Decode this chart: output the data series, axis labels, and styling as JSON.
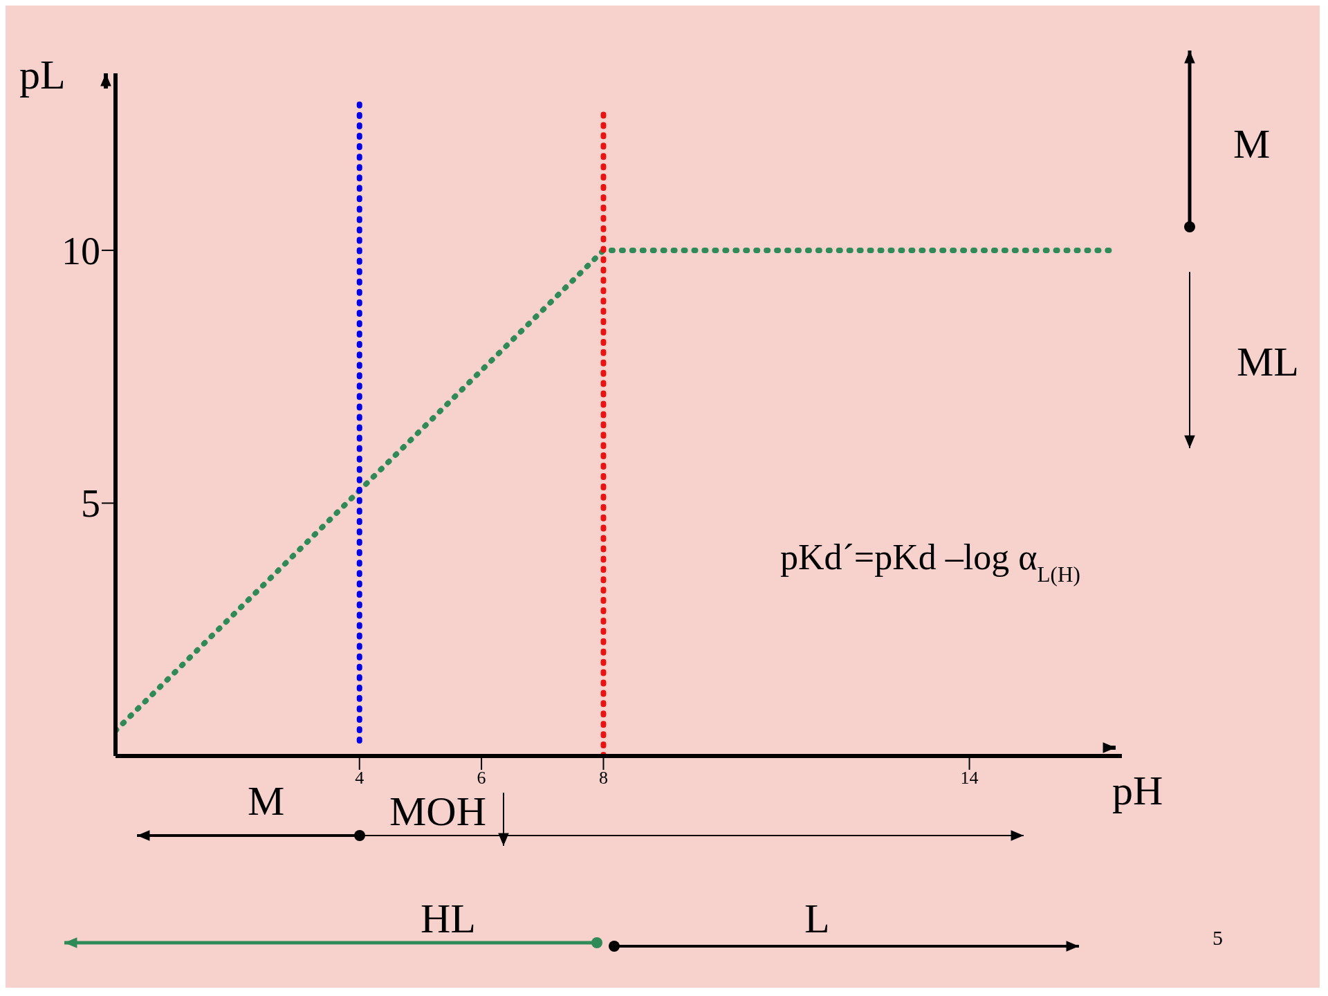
{
  "chart_data": {
    "type": "line",
    "xlabel": "pH",
    "ylabel": "pL",
    "xlim": [
      0,
      16.5
    ],
    "ylim": [
      0,
      13.5
    ],
    "xticks": [
      4,
      6,
      8,
      14
    ],
    "yticks": [
      5,
      10
    ],
    "marker": "none",
    "line_style": "dotted",
    "series": [
      {
        "color": "#2e8b57",
        "x": [
          0,
          8,
          16.3
        ],
        "values": [
          0.5,
          10,
          10
        ]
      },
      {
        "color": "#0000ee",
        "x": [
          4,
          4
        ],
        "values": [
          0.3,
          12.9
        ]
      },
      {
        "color": "#ee1111",
        "x": [
          8,
          8
        ],
        "values": [
          0,
          12.7
        ]
      }
    ],
    "annotations": [
      "M",
      "ML",
      "pKd´=pKd –log α$_{L(H)}$",
      "M",
      "MOH",
      "HL",
      "L",
      "5"
    ]
  }
}
